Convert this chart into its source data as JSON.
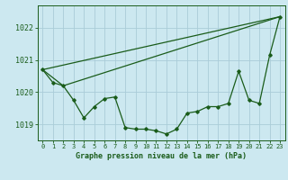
{
  "bg_color": "#cce8f0",
  "grid_color": "#aaccd8",
  "line_color": "#1a5c1a",
  "marker_color": "#1a5c1a",
  "xlabel": "Graphe pression niveau de la mer (hPa)",
  "xlabel_fontsize": 6.0,
  "ytick_fontsize": 6.0,
  "xtick_fontsize": 5.0,
  "yticks": [
    1019,
    1020,
    1021,
    1022
  ],
  "xticks": [
    0,
    1,
    2,
    3,
    4,
    5,
    6,
    7,
    8,
    9,
    10,
    11,
    12,
    13,
    14,
    15,
    16,
    17,
    18,
    19,
    20,
    21,
    22,
    23
  ],
  "xlim": [
    -0.5,
    23.5
  ],
  "ylim": [
    1018.5,
    1022.7
  ],
  "series_main": {
    "x": [
      0,
      1,
      2,
      3,
      4,
      5,
      6,
      7,
      8,
      9,
      10,
      11,
      12,
      13,
      14,
      15,
      16,
      17,
      18,
      19,
      20,
      21,
      22,
      23
    ],
    "y": [
      1020.7,
      1020.3,
      1020.2,
      1019.75,
      1019.2,
      1019.55,
      1019.8,
      1019.85,
      1018.9,
      1018.85,
      1018.85,
      1018.8,
      1018.7,
      1018.85,
      1019.35,
      1019.4,
      1019.55,
      1019.55,
      1019.65,
      1020.65,
      1019.75,
      1019.65,
      1021.15,
      1022.35
    ]
  },
  "trend1": {
    "x": [
      0,
      23
    ],
    "y": [
      1020.7,
      1022.35
    ]
  },
  "trend2": {
    "x": [
      0,
      2,
      23
    ],
    "y": [
      1020.7,
      1020.2,
      1022.35
    ]
  }
}
